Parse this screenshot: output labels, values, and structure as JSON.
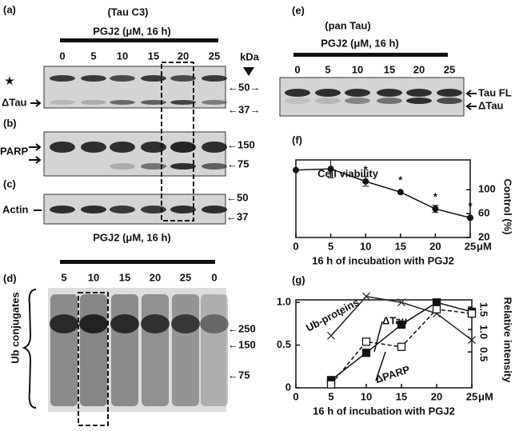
{
  "figure": {
    "panel_a": {
      "label": "(a)",
      "antibody": "(Tau C3)",
      "treatment": "PGJ2 (μM, 16 h)",
      "lanes": [
        "0",
        "5",
        "10",
        "15",
        "20",
        "25"
      ],
      "kda": "kDa",
      "star": "★",
      "band_label": "ΔTau",
      "markers": [
        "←50→",
        "←37→"
      ]
    },
    "panel_b": {
      "label": "(b)",
      "protein": "PARP",
      "markers": [
        "←150",
        "←75"
      ]
    },
    "panel_c": {
      "label": "(c)",
      "protein": "Actin",
      "markers": [
        "←50",
        "←37"
      ]
    },
    "panel_d": {
      "label": "(d)",
      "treatment": "PGJ2 (μM, 16 h)",
      "lanes": [
        "5",
        "10",
        "15",
        "20",
        "25",
        "0"
      ],
      "protein": "Ub conjugates",
      "markers": [
        "←250",
        "←150",
        "←75"
      ]
    },
    "panel_e": {
      "label": "(e)",
      "antibody": "(pan Tau)",
      "treatment": "PGJ2 (μM, 16 h)",
      "lanes": [
        "0",
        "5",
        "10",
        "15",
        "20",
        "25"
      ],
      "band_labels": [
        "Tau FL",
        "ΔTau"
      ]
    }
  },
  "chart_data": [
    {
      "type": "line",
      "label": "(f)",
      "title": "Cell viability",
      "xlabel": "16 h of incubation with PGJ2",
      "x_unit": "μM",
      "ylabel": "Control (%)",
      "x": [
        0,
        5,
        10,
        15,
        20,
        25
      ],
      "xlim": [
        0,
        25
      ],
      "xticks": [
        0,
        5,
        10,
        15,
        20,
        25
      ],
      "ylim": [
        20,
        150
      ],
      "yticks": [
        20,
        60,
        100
      ],
      "series": [
        {
          "color": "#111111",
          "values": [
            133,
            135,
            114,
            96,
            68,
            53
          ],
          "errors": [
            0,
            15,
            8,
            0,
            6,
            0
          ],
          "significance": [
            null,
            null,
            "*",
            "*",
            "*",
            "*"
          ]
        }
      ]
    },
    {
      "type": "line",
      "label": "(g)",
      "xlabel": "16 h of incubation with PGJ2",
      "x_unit": "μM",
      "y2label": "Relative intensity",
      "x": [
        5,
        10,
        15,
        20,
        25
      ],
      "xlim": [
        0,
        25
      ],
      "xticks": [
        0,
        5,
        10,
        15,
        20,
        25
      ],
      "ylim": [
        0,
        1.03
      ],
      "yticks": [
        0,
        0.5,
        {
          "value": 1,
          "label": "1.0"
        }
      ],
      "y2lim": [
        -0.3,
        1.66
      ],
      "y2ticks": [
        0.5,
        {
          "value": 1,
          "label": "1.0"
        },
        1.5
      ],
      "series": [
        {
          "name": "Ub-proteins",
          "color": "#222222",
          "marker": "x",
          "values": [
            0.61,
            1.07,
            1.0,
            0.87,
            0.56
          ]
        },
        {
          "name": "ΔTau",
          "color": "#111111",
          "marker": "filled-square",
          "values": [
            0.09,
            0.41,
            0.74,
            1.0,
            0.89
          ]
        },
        {
          "name": "ΔPARP",
          "color": "#111111",
          "marker": "open-square",
          "values": [
            0.04,
            0.54,
            0.48,
            0.92,
            0.87
          ]
        }
      ]
    }
  ]
}
